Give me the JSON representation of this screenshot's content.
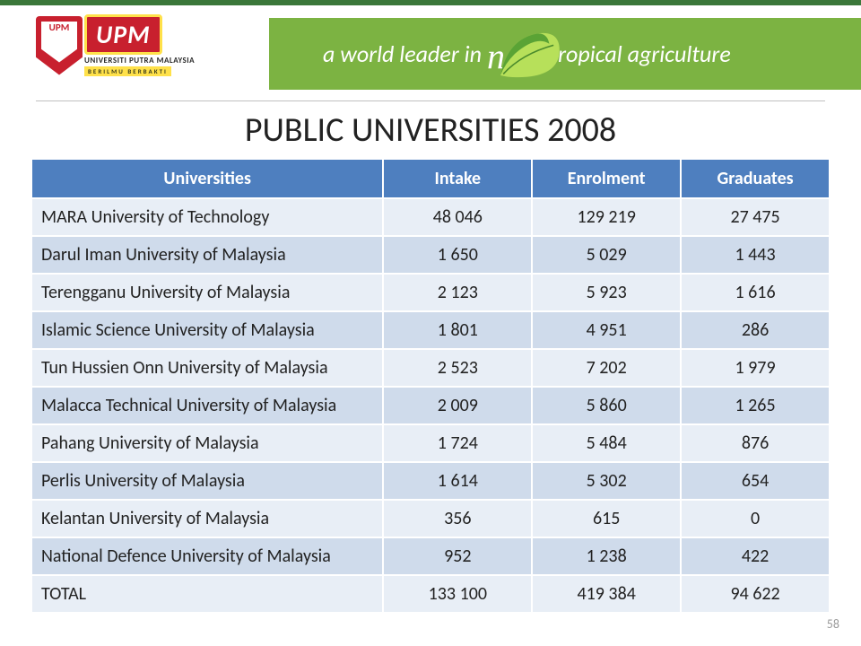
{
  "banner": {
    "shield_text": "UPM",
    "wordmark": "UPM",
    "university_name": "UNIVERSITI PUTRA MALAYSIA",
    "motto": "BERILMU BERBAKTI",
    "tagline_pre": "a world leader in",
    "tagline_new": "new",
    "tagline_post": "tropical agriculture",
    "strip_bg": "#7cb342",
    "strip_text_color": "#ffffff",
    "brand_red": "#c8202e",
    "brand_yellow": "#ffe14a",
    "border_green": "#3b773a"
  },
  "slide": {
    "title": "PUBLIC UNIVERSITIES 2008",
    "page_number": "58",
    "title_fontsize": 38,
    "title_color": "#222222"
  },
  "table": {
    "type": "table",
    "header_bg": "#4e7fbf",
    "header_text_color": "#ffffff",
    "row_odd_bg": "#e8eef6",
    "row_even_bg": "#cfdbeb",
    "border_color": "#ffffff",
    "font_size": 20,
    "columns": [
      {
        "key": "name",
        "label": "Universities",
        "align": "left",
        "width_pct": 44
      },
      {
        "key": "intake",
        "label": "Intake",
        "align": "center",
        "width_pct": 18.6
      },
      {
        "key": "enrolment",
        "label": "Enrolment",
        "align": "center",
        "width_pct": 18.6
      },
      {
        "key": "graduates",
        "label": "Graduates",
        "align": "center",
        "width_pct": 18.6
      }
    ],
    "rows": [
      {
        "name": "MARA University of Technology",
        "intake": "48 046",
        "enrolment": "129 219",
        "graduates": "27 475"
      },
      {
        "name": "Darul Iman University of Malaysia",
        "intake": "1 650",
        "enrolment": "5 029",
        "graduates": "1 443"
      },
      {
        "name": "Terengganu University of Malaysia",
        "intake": "2 123",
        "enrolment": "5 923",
        "graduates": "1 616"
      },
      {
        "name": "Islamic Science University of Malaysia",
        "intake": "1 801",
        "enrolment": "4 951",
        "graduates": "286"
      },
      {
        "name": "Tun Hussien Onn University of Malaysia",
        "intake": "2 523",
        "enrolment": "7 202",
        "graduates": "1 979"
      },
      {
        "name": "Malacca Technical University of Malaysia",
        "intake": "2 009",
        "enrolment": "5 860",
        "graduates": "1 265"
      },
      {
        "name": "Pahang University of Malaysia",
        "intake": "1 724",
        "enrolment": "5 484",
        "graduates": "876"
      },
      {
        "name": "Perlis University of Malaysia",
        "intake": "1 614",
        "enrolment": "5 302",
        "graduates": "654"
      },
      {
        "name": "Kelantan University of Malaysia",
        "intake": "356",
        "enrolment": "615",
        "graduates": "0"
      },
      {
        "name": "National Defence University of Malaysia",
        "intake": "952",
        "enrolment": "1 238",
        "graduates": "422"
      },
      {
        "name": "TOTAL",
        "intake": "133 100",
        "enrolment": "419 384",
        "graduates": "94 622"
      }
    ]
  }
}
